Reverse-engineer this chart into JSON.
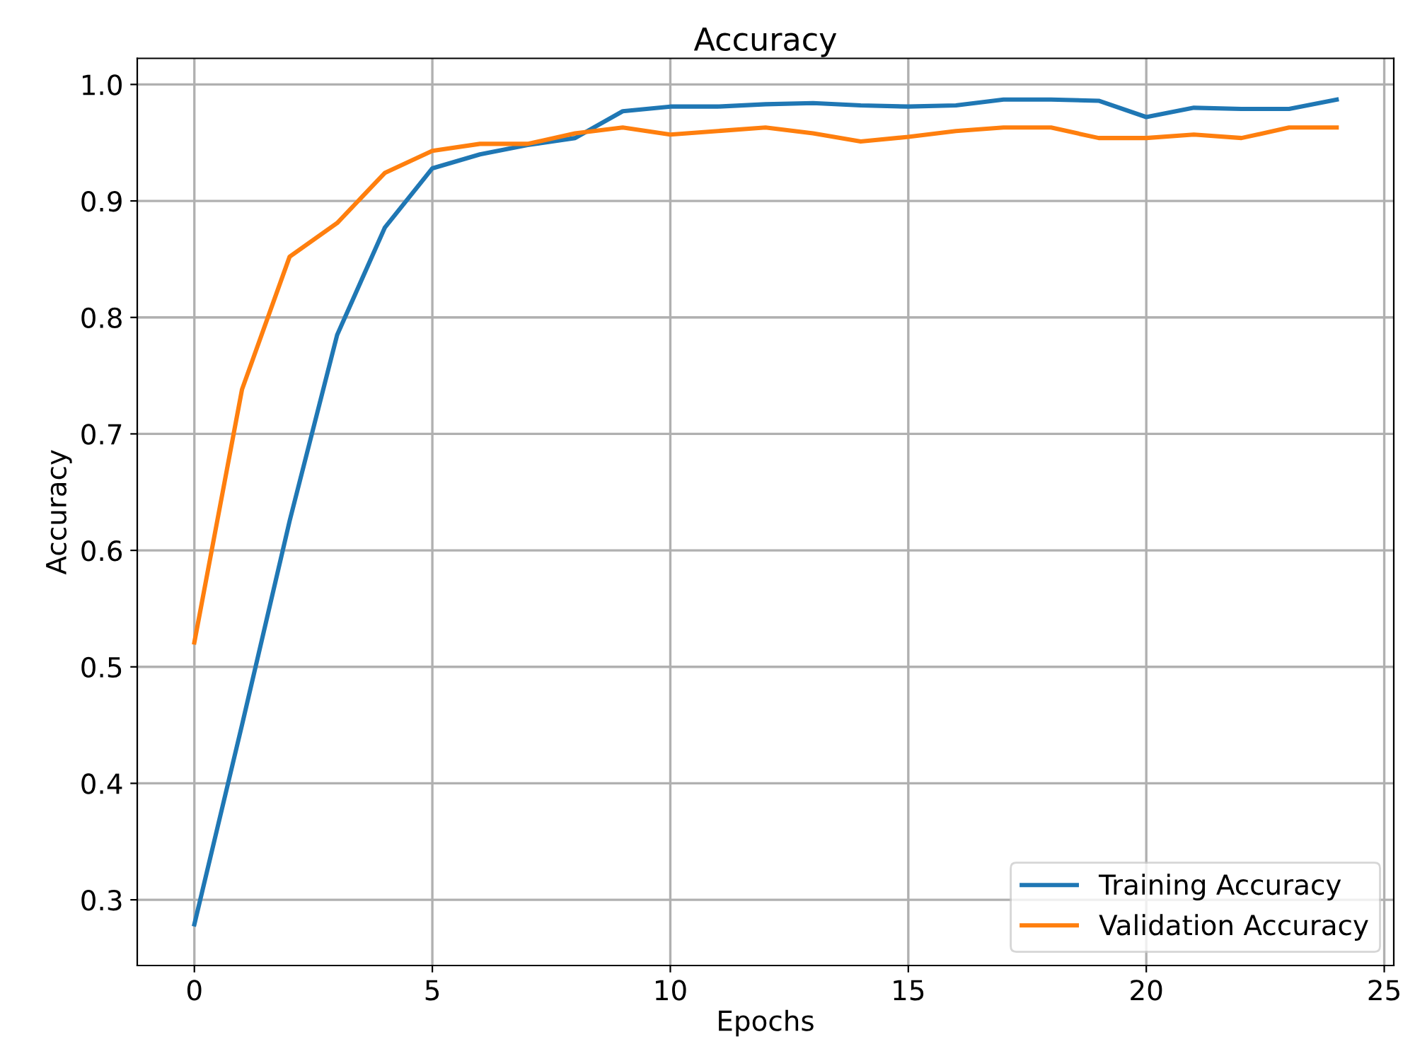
{
  "chart_data": {
    "type": "line",
    "title": "Accuracy",
    "xlabel": "Epochs",
    "ylabel": "Accuracy",
    "x": [
      0,
      1,
      2,
      3,
      4,
      5,
      6,
      7,
      8,
      9,
      10,
      11,
      12,
      13,
      14,
      15,
      16,
      17,
      18,
      19,
      20,
      21,
      22,
      23,
      24
    ],
    "series": [
      {
        "name": "Training Accuracy",
        "color": "#1f77b4",
        "values": [
          0.279,
          0.45,
          0.625,
          0.785,
          0.877,
          0.928,
          0.94,
          0.948,
          0.954,
          0.977,
          0.981,
          0.981,
          0.983,
          0.984,
          0.982,
          0.981,
          0.982,
          0.987,
          0.987,
          0.986,
          0.972,
          0.98,
          0.979,
          0.979,
          0.987
        ]
      },
      {
        "name": "Validation Accuracy",
        "color": "#ff7f0e",
        "values": [
          0.521,
          0.738,
          0.852,
          0.881,
          0.924,
          0.943,
          0.949,
          0.949,
          0.958,
          0.963,
          0.957,
          0.96,
          0.963,
          0.958,
          0.951,
          0.955,
          0.96,
          0.963,
          0.963,
          0.954,
          0.954,
          0.957,
          0.954,
          0.963,
          0.963
        ]
      }
    ],
    "xlim": [
      -1.2,
      25.2
    ],
    "xticks": [
      0,
      5,
      10,
      15,
      20,
      25
    ],
    "ylim": [
      0.2436,
      1.0224
    ],
    "yticks": [
      {
        "value": 0.3,
        "label": "0.3"
      },
      {
        "value": 0.4,
        "label": "0.4"
      },
      {
        "value": 0.5,
        "label": "0.5"
      },
      {
        "value": 0.6,
        "label": "0.6"
      },
      {
        "value": 0.7,
        "label": "0.7"
      },
      {
        "value": 0.8,
        "label": "0.8"
      },
      {
        "value": 0.9,
        "label": "0.9"
      },
      {
        "value": 1.0,
        "label": "1.0"
      }
    ],
    "grid": true,
    "legend": "lower right",
    "marker": "none",
    "line_style": "solid"
  }
}
